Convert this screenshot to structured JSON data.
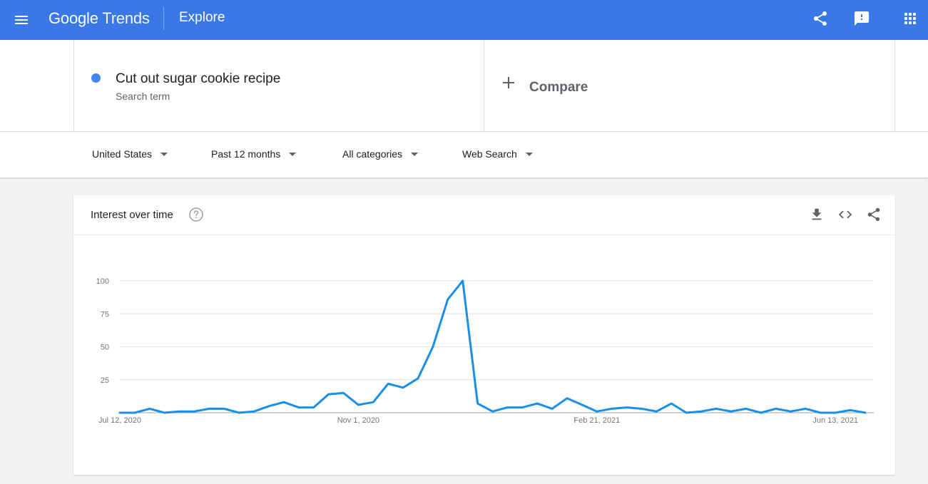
{
  "header": {
    "logo_google": "Google",
    "logo_trends": "Trends",
    "section": "Explore",
    "accent": "#3b78e7"
  },
  "term": {
    "title": "Cut out sugar cookie recipe",
    "subtitle": "Search term",
    "dot_color": "#4285f4"
  },
  "compare": {
    "label": "Compare"
  },
  "filters": {
    "region": "United States",
    "time": "Past 12 months",
    "category": "All categories",
    "search_type": "Web Search"
  },
  "card": {
    "title": "Interest over time"
  },
  "chart_data": {
    "type": "line",
    "title": "Interest over time",
    "xlabel": "",
    "ylabel": "",
    "ylim": [
      0,
      100
    ],
    "yticks": [
      25,
      50,
      75,
      100
    ],
    "xtick_labels": [
      {
        "index": 0,
        "label": "Jul 12, 2020"
      },
      {
        "index": 16,
        "label": "Nov 1, 2020"
      },
      {
        "index": 32,
        "label": "Feb 21, 2021"
      },
      {
        "index": 48,
        "label": "Jun 13, 2021"
      }
    ],
    "grid": true,
    "series": [
      {
        "color": "#1a8fe8",
        "values": [
          0,
          0,
          3,
          0,
          1,
          1,
          3,
          3,
          0,
          1,
          5,
          8,
          4,
          4,
          14,
          15,
          6,
          8,
          22,
          19,
          26,
          50,
          86,
          100,
          7,
          1,
          4,
          4,
          7,
          3,
          11,
          6,
          1,
          3,
          4,
          3,
          1,
          7,
          0,
          1,
          3,
          1,
          3,
          0,
          3,
          1,
          3,
          0,
          0,
          2,
          0
        ]
      }
    ]
  }
}
